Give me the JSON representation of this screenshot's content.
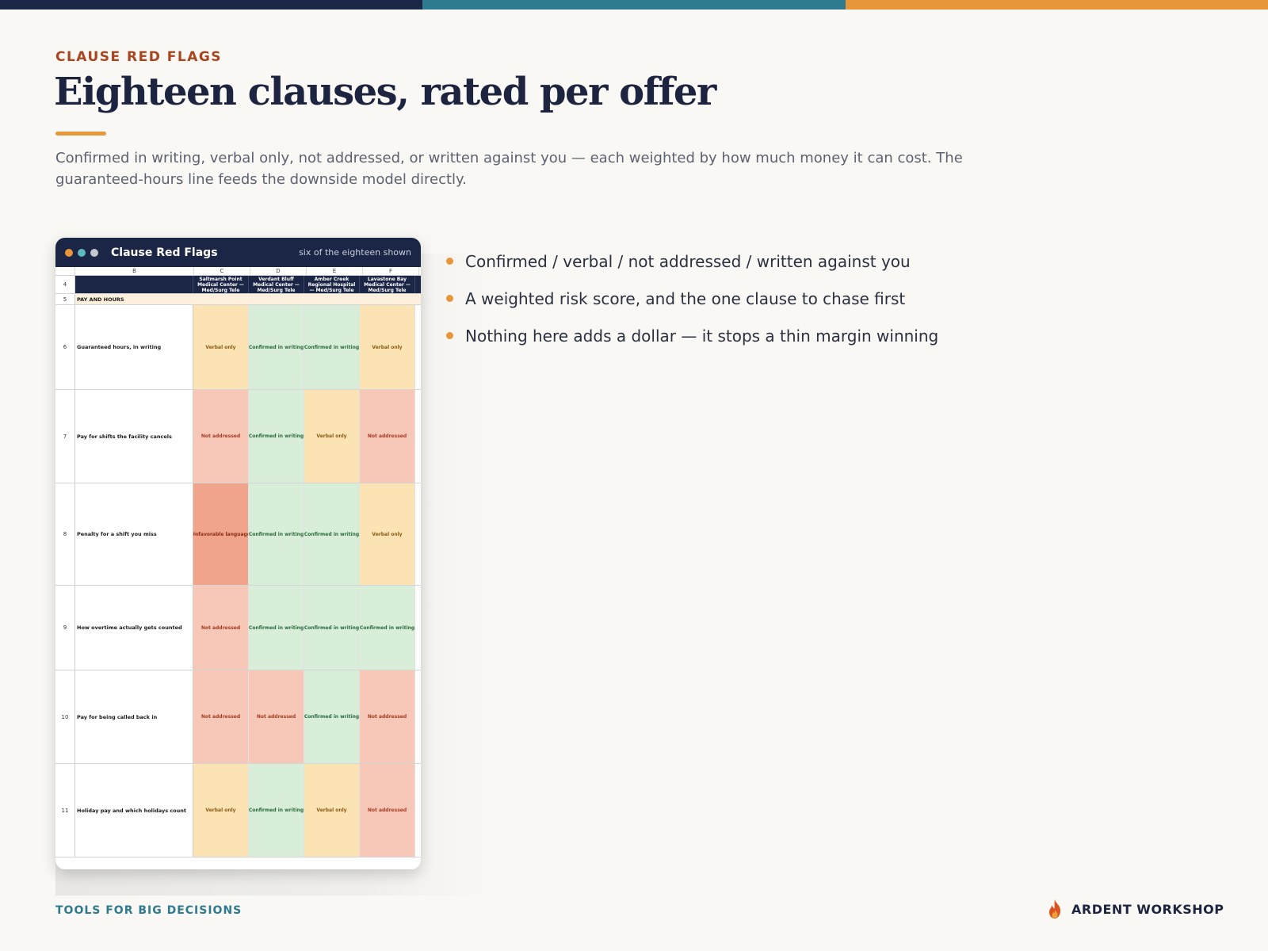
{
  "colors": {
    "bar_navy": "#1b2545",
    "bar_teal": "#2e7b8f",
    "bar_orange": "#e8963a",
    "dot_orange": "#e8963a",
    "dot_teal": "#5fb8bf",
    "dot_gray": "#c4c7cf",
    "status": {
      "confirmed": {
        "bg": "#d8eed9",
        "fg": "#2c6b3c"
      },
      "verbal": {
        "bg": "#fce3b4",
        "fg": "#8a5a12"
      },
      "not_addressed": {
        "bg": "#f7c7b8",
        "fg": "#a63c22"
      },
      "unfavorable": {
        "bg": "#f0a48c",
        "fg": "#8f2b14"
      }
    }
  },
  "kicker": "CLAUSE RED FLAGS",
  "title": "Eighteen clauses, rated per offer",
  "subtitle": "Confirmed in writing, verbal only, not addressed, or written against you — each weighted by how much money it can cost. The guaranteed-hours line feeds the downside model directly.",
  "window": {
    "title": "Clause Red Flags",
    "note": "six of the eighteen shown"
  },
  "sheet": {
    "columns": [
      "B",
      "C",
      "D",
      "E",
      "F"
    ],
    "header_row_number": "4",
    "offers": [
      "Saltmarsh Point Medical Center — Med/Surg Tele",
      "Verdant Bluff Medical Center — Med/Surg Tele",
      "Amber Creek Regional Hospital — Med/Surg Tele",
      "Lavastone Bay Medical Center — Med/Surg Tele"
    ],
    "section_row_number": "5",
    "section_label": "PAY AND HOURS",
    "rows": [
      {
        "num": "6",
        "label": "Guaranteed hours, in writing",
        "height": 106,
        "cells": [
          {
            "text": "Verbal only",
            "status": "verbal"
          },
          {
            "text": "Confirmed in writing",
            "status": "confirmed"
          },
          {
            "text": "Confirmed in writing",
            "status": "confirmed"
          },
          {
            "text": "Verbal only",
            "status": "verbal"
          }
        ]
      },
      {
        "num": "7",
        "label": "Pay for shifts the facility cancels",
        "height": 117,
        "cells": [
          {
            "text": "Not addressed",
            "status": "not_addressed"
          },
          {
            "text": "Confirmed in writing",
            "status": "confirmed"
          },
          {
            "text": "Verbal only",
            "status": "verbal"
          },
          {
            "text": "Not addressed",
            "status": "not_addressed"
          }
        ]
      },
      {
        "num": "8",
        "label": "Penalty for a shift you miss",
        "height": 128,
        "cells": [
          {
            "text": "Unfavorable language",
            "status": "unfavorable"
          },
          {
            "text": "Confirmed in writing",
            "status": "confirmed"
          },
          {
            "text": "Confirmed in writing",
            "status": "confirmed"
          },
          {
            "text": "Verbal only",
            "status": "verbal"
          }
        ]
      },
      {
        "num": "9",
        "label": "How overtime actually gets counted",
        "height": 106,
        "cells": [
          {
            "text": "Not addressed",
            "status": "not_addressed"
          },
          {
            "text": "Confirmed in writing",
            "status": "confirmed"
          },
          {
            "text": "Confirmed in writing",
            "status": "confirmed"
          },
          {
            "text": "Confirmed in writing",
            "status": "confirmed"
          }
        ]
      },
      {
        "num": "10",
        "label": "Pay for being called back in",
        "height": 117,
        "cells": [
          {
            "text": "Not addressed",
            "status": "not_addressed"
          },
          {
            "text": "Not addressed",
            "status": "not_addressed"
          },
          {
            "text": "Confirmed in writing",
            "status": "confirmed"
          },
          {
            "text": "Not addressed",
            "status": "not_addressed"
          }
        ]
      },
      {
        "num": "11",
        "label": "Holiday pay and which holidays count",
        "height": 117,
        "cells": [
          {
            "text": "Verbal only",
            "status": "verbal"
          },
          {
            "text": "Confirmed in writing",
            "status": "confirmed"
          },
          {
            "text": "Verbal only",
            "status": "verbal"
          },
          {
            "text": "Not addressed",
            "status": "not_addressed"
          }
        ]
      }
    ]
  },
  "bullets": [
    "Confirmed / verbal / not addressed / written against you",
    "A weighted risk score, and the one clause to chase first",
    "Nothing here adds a dollar — it stops a thin margin winning"
  ],
  "footer": {
    "left": "TOOLS FOR BIG DECISIONS",
    "brand": "ARDENT WORKSHOP",
    "brand_icon": "flame-icon"
  }
}
